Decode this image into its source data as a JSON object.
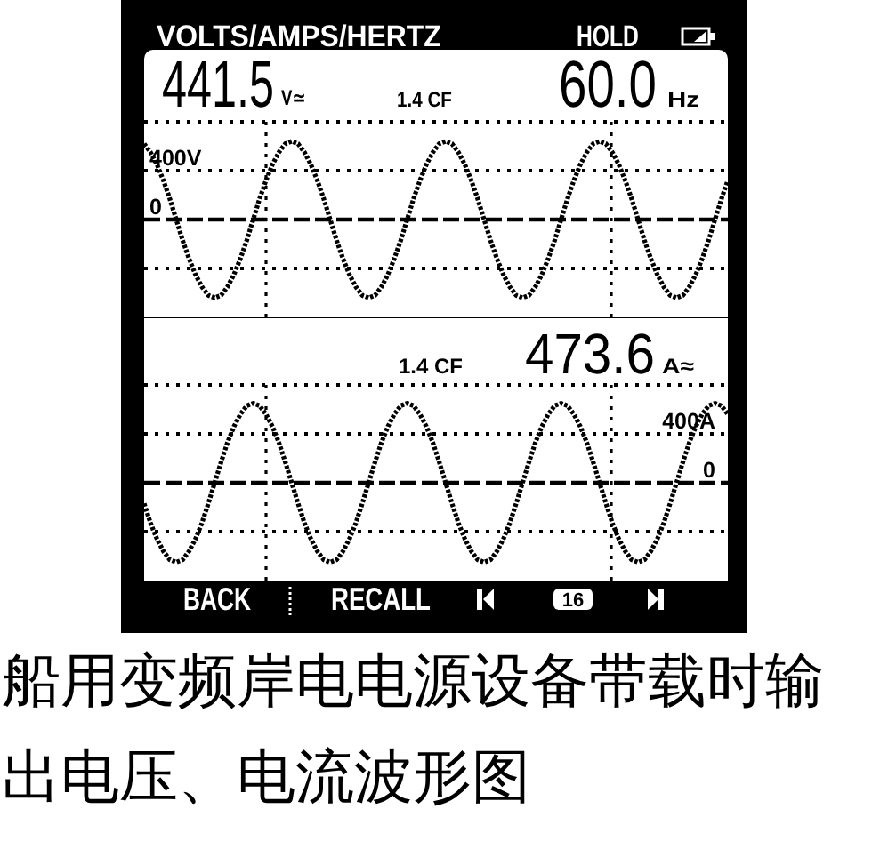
{
  "chart_data": [
    {
      "type": "line",
      "title": "VOLTS/AMPS/HERTZ",
      "annotations": [
        "HOLD",
        "441.5",
        "V≃",
        "1.4 CF",
        "60.0",
        "Hz"
      ],
      "categories": [
        null,
        null,
        null,
        null,
        null,
        null,
        null,
        null,
        null,
        null,
        null,
        null,
        null,
        null,
        null,
        null,
        null,
        null,
        null,
        null,
        null,
        null,
        null,
        null,
        null,
        null,
        null,
        null,
        null,
        null,
        null,
        null,
        null,
        null,
        null,
        null,
        null,
        null,
        null,
        null,
        null,
        null,
        null,
        null,
        null,
        null,
        null,
        null,
        null,
        null,
        null,
        null,
        null,
        null,
        null,
        null,
        null,
        null,
        null,
        null,
        null,
        null,
        null,
        null,
        null,
        null,
        null,
        null,
        null,
        null,
        null,
        null,
        null,
        null,
        null,
        null,
        null,
        null,
        null,
        null,
        null,
        null,
        null,
        null,
        null,
        null,
        null,
        null,
        null,
        null,
        null,
        null
      ],
      "series": [
        {
          "color": "#000000",
          "values": [
            620,
            550,
            450,
            320,
            170,
            0,
            -170,
            -320,
            -450,
            -550,
            -620,
            -640,
            -620,
            -550,
            -450,
            -320,
            -170,
            0,
            170,
            320,
            450,
            550,
            620,
            640,
            620,
            550,
            450,
            320,
            170,
            0,
            -170,
            -320,
            -450,
            -550,
            -620,
            -640,
            -620,
            -550,
            -450,
            -320,
            -170,
            0,
            170,
            320,
            450,
            550,
            620,
            640,
            620,
            550,
            450,
            320,
            170,
            0,
            -170,
            -320,
            -450,
            -550,
            -620,
            -640,
            -620,
            -550,
            -450,
            -320,
            -170,
            0,
            170,
            320,
            450,
            550,
            620,
            640,
            620,
            550,
            450,
            320,
            170,
            0,
            -170,
            -320,
            -450,
            -550,
            -620,
            -640,
            -620,
            -550,
            -450,
            -320,
            -170,
            0,
            170,
            320
          ]
        }
      ],
      "ylim": [
        -800,
        800
      ],
      "yticks": [
        {
          "value": 800,
          "label": null
        },
        {
          "value": 400,
          "label": "400V"
        },
        {
          "value": 0,
          "label": "0"
        },
        {
          "value": -400,
          "label": null
        }
      ],
      "grid": "y",
      "line_style": "dotted",
      "ref_lines": [
        {
          "axis": "y",
          "value": 0,
          "line_style": "dashed"
        }
      ]
    },
    {
      "type": "line",
      "annotations": [
        "1.4 CF",
        "473.6",
        "A≈",
        "BACK",
        "RECALL",
        "16",
        "船用变频岸电电源设备带载时输出电压、电流波形图"
      ],
      "categories": [
        null,
        null,
        null,
        null,
        null,
        null,
        null,
        null,
        null,
        null,
        null,
        null,
        null,
        null,
        null,
        null,
        null,
        null,
        null,
        null,
        null,
        null,
        null,
        null,
        null,
        null,
        null,
        null,
        null,
        null,
        null,
        null,
        null,
        null,
        null,
        null,
        null,
        null,
        null,
        null,
        null,
        null,
        null,
        null,
        null,
        null,
        null,
        null,
        null,
        null,
        null,
        null,
        null,
        null,
        null,
        null,
        null,
        null,
        null,
        null,
        null,
        null,
        null,
        null,
        null,
        null,
        null,
        null,
        null,
        null,
        null,
        null,
        null,
        null,
        null,
        null,
        null,
        null,
        null,
        null,
        null,
        null,
        null,
        null,
        null,
        null,
        null,
        null,
        null,
        null,
        null,
        null
      ],
      "series": [
        {
          "color": "#000000",
          "values": [
            -170,
            -330,
            -460,
            -560,
            -630,
            -650,
            -630,
            -560,
            -460,
            -330,
            -170,
            0,
            170,
            330,
            460,
            560,
            630,
            650,
            630,
            560,
            460,
            330,
            170,
            0,
            -170,
            -330,
            -460,
            -560,
            -630,
            -650,
            -630,
            -560,
            -460,
            -330,
            -170,
            0,
            170,
            330,
            460,
            560,
            630,
            650,
            630,
            560,
            460,
            330,
            170,
            0,
            -170,
            -330,
            -460,
            -560,
            -630,
            -650,
            -630,
            -560,
            -460,
            -330,
            -170,
            0,
            170,
            330,
            460,
            560,
            630,
            650,
            630,
            560,
            460,
            330,
            170,
            0,
            -170,
            -330,
            -460,
            -560,
            -630,
            -650,
            -630,
            -560,
            -460,
            -330,
            -170,
            0,
            170,
            330,
            460,
            560,
            630,
            650,
            630,
            560
          ]
        }
      ],
      "ylim": [
        -800,
        800
      ],
      "yticks": [
        {
          "value": 800,
          "label": null
        },
        {
          "value": 400,
          "label": "400A"
        },
        {
          "value": 0,
          "label": "0"
        },
        {
          "value": -400,
          "label": null
        }
      ],
      "grid": "y",
      "line_style": "dotted",
      "ref_lines": [
        {
          "axis": "y",
          "value": 0,
          "line_style": "dashed"
        }
      ]
    }
  ]
}
